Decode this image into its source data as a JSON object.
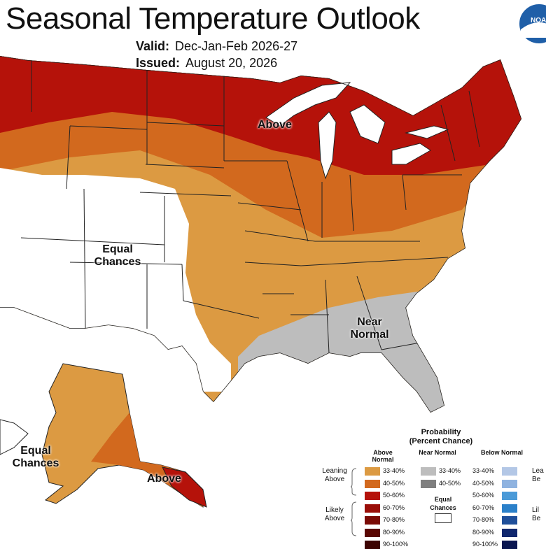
{
  "header": {
    "title": "Seasonal Temperature Outlook",
    "valid_label": "Valid:",
    "valid_value": "Dec-Jan-Feb 2026-27",
    "issued_label": "Issued:",
    "issued_value": "August 20, 2026",
    "logo_text": "NOAA"
  },
  "map_labels": {
    "above": "Above",
    "equal_chances_line1": "Equal",
    "equal_chances_line2": "Chances",
    "near_normal_line1": "Near",
    "near_normal_line2": "Normal",
    "alaska_equal_line1": "Equal",
    "alaska_equal_line2": "Chances",
    "alaska_above": "Above"
  },
  "legend": {
    "title_line1": "Probability",
    "title_line2": "(Percent Chance)",
    "above_head": "Above Normal",
    "near_head": "Near Normal",
    "below_head": "Below Normal",
    "leaning_above": "Leaning Above",
    "likely_above": "Likely Above",
    "leaning_below_partial": "Lea Be",
    "likely_below_partial": "Lil Be",
    "equal_chances": "Equal Chances",
    "above": [
      {
        "range": "33-40%",
        "color": "#dc9a42"
      },
      {
        "range": "40-50%",
        "color": "#d2691e"
      },
      {
        "range": "50-60%",
        "color": "#b5120a"
      },
      {
        "range": "60-70%",
        "color": "#9a0e08"
      },
      {
        "range": "70-80%",
        "color": "#7a0a05"
      },
      {
        "range": "80-90%",
        "color": "#5a0703"
      },
      {
        "range": "90-100%",
        "color": "#3d0402"
      }
    ],
    "near": [
      {
        "range": "33-40%",
        "color": "#bdbdbd"
      },
      {
        "range": "40-50%",
        "color": "#7f7f7f"
      }
    ],
    "below": [
      {
        "range": "33-40%",
        "color": "#b3c7e6"
      },
      {
        "range": "40-50%",
        "color": "#8fb3e0"
      },
      {
        "range": "50-60%",
        "color": "#4a9ad8"
      },
      {
        "range": "60-70%",
        "color": "#2b80c9"
      },
      {
        "range": "70-80%",
        "color": "#1f4f9a"
      },
      {
        "range": "80-90%",
        "color": "#10276e"
      },
      {
        "range": "90-100%",
        "color": "#0a1650"
      }
    ]
  }
}
